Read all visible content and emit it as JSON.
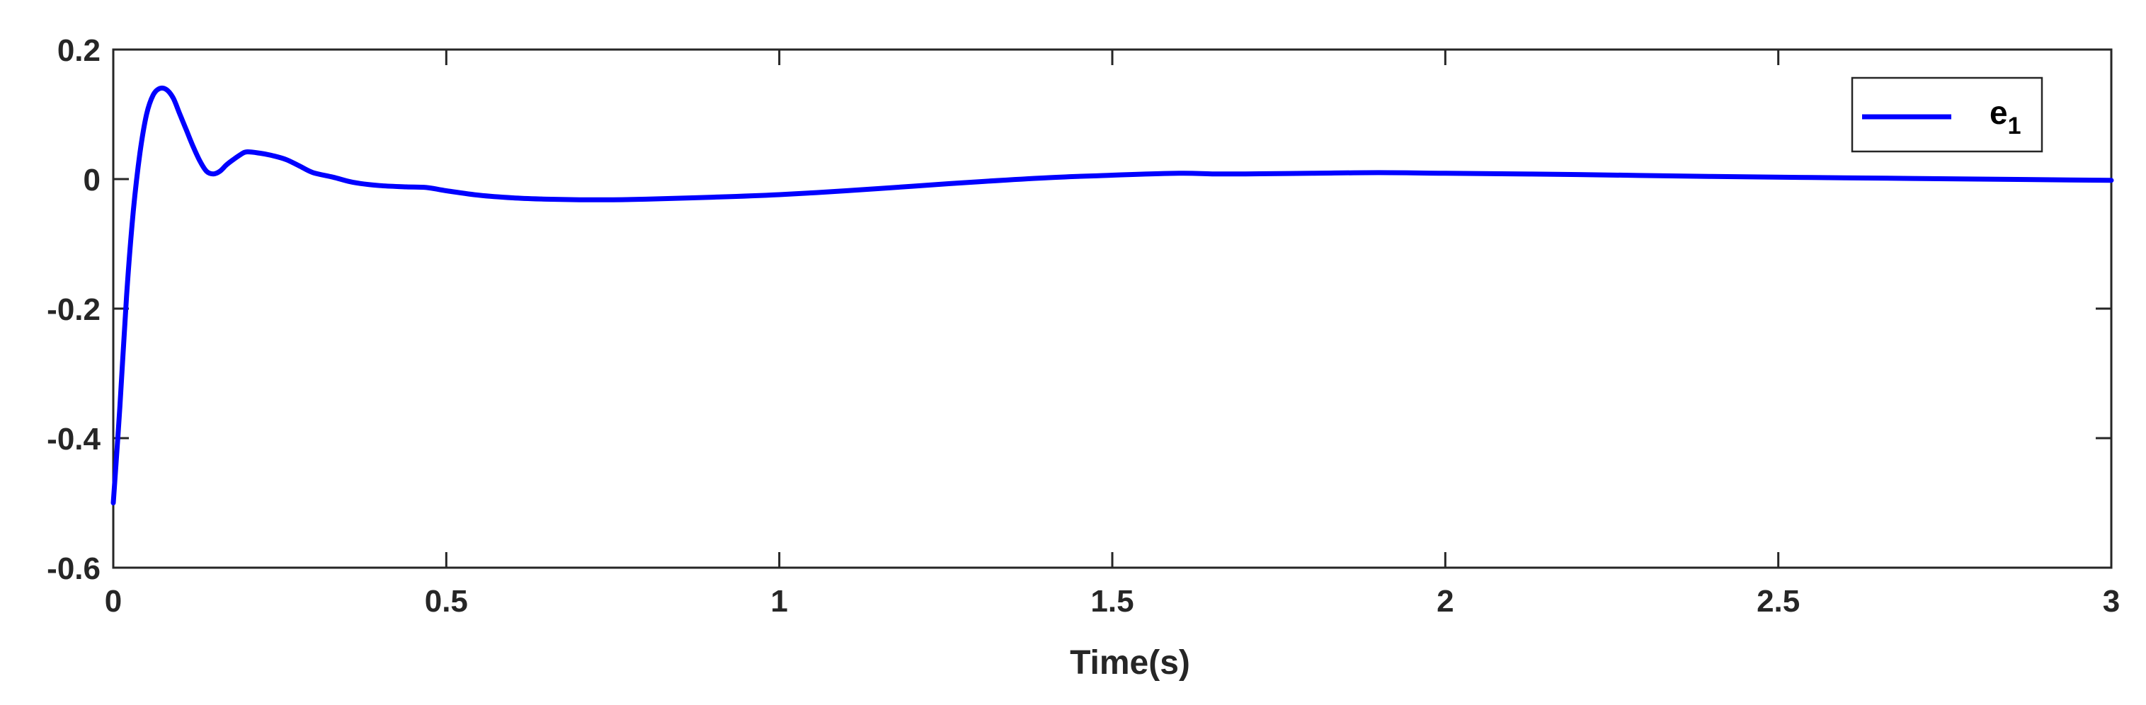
{
  "chart_data": {
    "type": "line",
    "title": "",
    "xlabel": "Time(s)",
    "ylabel": "",
    "xlim": [
      0,
      3
    ],
    "ylim": [
      -0.6,
      0.2
    ],
    "grid": false,
    "legend_position": "top-right",
    "x_ticks": [
      "0",
      "0.5",
      "1",
      "1.5",
      "2",
      "2.5",
      "3"
    ],
    "y_ticks": [
      "0.2",
      "0",
      "-0.2",
      "-0.4",
      "-0.6"
    ],
    "series": [
      {
        "name": "e1",
        "legend_base": "e",
        "legend_subscript": "1",
        "color": "#0000ff",
        "x": [
          0.0,
          0.01,
          0.02,
          0.03,
          0.04,
          0.05,
          0.06,
          0.07,
          0.08,
          0.09,
          0.1,
          0.11,
          0.12,
          0.13,
          0.14,
          0.15,
          0.16,
          0.17,
          0.18,
          0.19,
          0.2,
          0.22,
          0.24,
          0.26,
          0.28,
          0.3,
          0.33,
          0.36,
          0.4,
          0.44,
          0.47,
          0.5,
          0.55,
          0.6,
          0.65,
          0.7,
          0.75,
          0.8,
          0.9,
          1.0,
          1.1,
          1.2,
          1.3,
          1.4,
          1.5,
          1.6,
          1.65,
          1.7,
          1.8,
          1.9,
          2.0,
          2.2,
          2.4,
          2.6,
          2.8,
          3.0
        ],
        "y": [
          -0.5,
          -0.35,
          -0.18,
          -0.05,
          0.04,
          0.1,
          0.13,
          0.14,
          0.138,
          0.125,
          0.1,
          0.075,
          0.05,
          0.028,
          0.012,
          0.008,
          0.012,
          0.022,
          0.03,
          0.037,
          0.042,
          0.04,
          0.036,
          0.03,
          0.02,
          0.01,
          0.003,
          -0.005,
          -0.01,
          -0.012,
          -0.013,
          -0.018,
          -0.025,
          -0.029,
          -0.031,
          -0.032,
          -0.032,
          -0.031,
          -0.028,
          -0.024,
          -0.018,
          -0.011,
          -0.004,
          0.002,
          0.006,
          0.009,
          0.008,
          0.008,
          0.009,
          0.01,
          0.009,
          0.007,
          0.004,
          0.002,
          0.0,
          -0.002
        ]
      }
    ]
  }
}
